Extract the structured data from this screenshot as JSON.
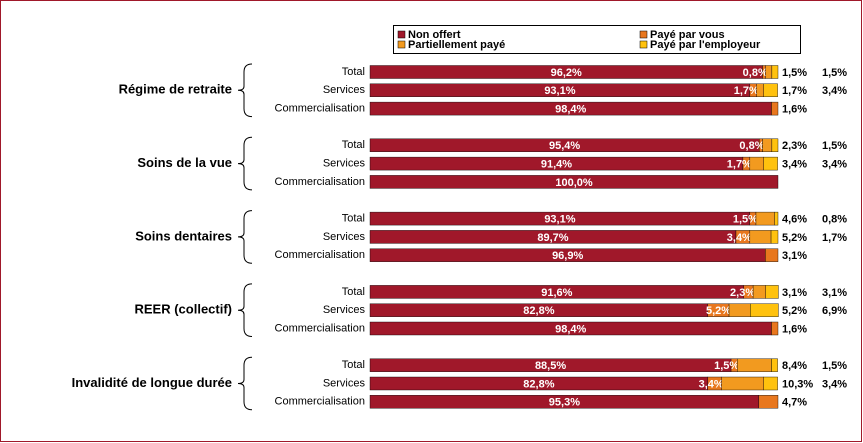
{
  "chart_data": {
    "type": "stacked-bar-horizontal",
    "groups": [
      "Régime de retraite",
      "Soins de la vue",
      "Soins dentaires",
      "REER (collectif)",
      "Invalidité de longue durée"
    ],
    "categories": [
      "Total",
      "Services",
      "Commercialisation",
      "Total",
      "Services",
      "Commercialisation",
      "Total",
      "Services",
      "Commercialisation",
      "Total",
      "Services",
      "Commercialisation",
      "Total",
      "Services",
      "Commercialisation"
    ],
    "xlim": [
      0,
      100
    ],
    "series": [
      {
        "name": "Non offert",
        "color": "#a0182a",
        "values": [
          96.2,
          93.1,
          98.4,
          95.4,
          91.4,
          100.0,
          93.1,
          89.7,
          96.9,
          91.6,
          82.8,
          98.4,
          88.5,
          82.8,
          95.3
        ],
        "value_labels": [
          "96,2%",
          "93,1%",
          "98,4%",
          "95,4%",
          "91,4%",
          "100,0%",
          "93,1%",
          "89,7%",
          "96,9%",
          "91,6%",
          "82,8%",
          "98,4%",
          "88,5%",
          "82,8%",
          "95,3%"
        ]
      },
      {
        "name": "Payé par vous",
        "color": "#e8771e",
        "values": [
          0.8,
          1.7,
          1.6,
          0.8,
          1.7,
          null,
          1.5,
          3.4,
          3.1,
          2.3,
          5.2,
          1.6,
          1.5,
          3.4,
          4.7
        ],
        "value_labels": [
          "0,8%",
          "1,7%",
          "1,6%",
          "0,8%",
          "1,7%",
          null,
          "1,5%",
          "3,4%",
          "3,1%",
          "2,3%",
          "5,2%",
          "1,6%",
          "1,5%",
          "3,4%",
          "4,7%"
        ]
      },
      {
        "name": "Partiellement payé",
        "color": "#f29a1f",
        "values": [
          1.5,
          1.7,
          null,
          2.3,
          3.4,
          null,
          4.6,
          5.2,
          null,
          3.1,
          5.2,
          null,
          8.4,
          10.3,
          null
        ],
        "value_labels": [
          "1,5%",
          "1,7%",
          null,
          "2,3%",
          "3,4%",
          null,
          "4,6%",
          "5,2%",
          null,
          "3,1%",
          "5,2%",
          null,
          "8,4%",
          "10,3%",
          null
        ]
      },
      {
        "name": "Payé par l'employeur",
        "color": "#ffc20e",
        "values": [
          1.5,
          3.4,
          null,
          1.5,
          3.4,
          null,
          0.8,
          1.7,
          null,
          3.1,
          6.9,
          null,
          1.5,
          3.4,
          null
        ],
        "value_labels": [
          "1,5%",
          "3,4%",
          null,
          "1,5%",
          "3,4%",
          null,
          "0,8%",
          "1,7%",
          null,
          "3,1%",
          "6,9%",
          null,
          "1,5%",
          "3,4%",
          null
        ]
      }
    ]
  }
}
